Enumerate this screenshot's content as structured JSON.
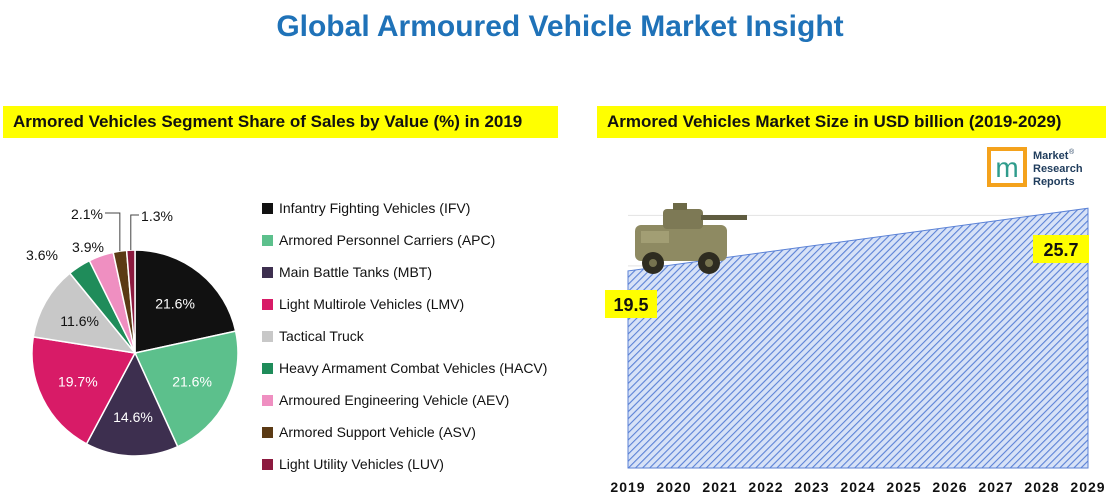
{
  "title": "Global Armoured Vehicle Market Insight",
  "pie_title": "Armored Vehicles Segment Share of Sales by Value (%) in 2019",
  "area_title": "Armored Vehicles Market Size in USD billion (2019-2029)",
  "logo": {
    "text": [
      "Market",
      "Research",
      "Reports"
    ],
    "mark": "m",
    "registered": "®"
  },
  "colors": {
    "title": "#1f72b8",
    "highlight": "#ffff00",
    "area": "#5b82d6"
  },
  "chart_data": [
    {
      "type": "pie",
      "title": "Armored Vehicles Segment Share of Sales by Value (%) in 2019",
      "legend_position": "right",
      "slices": [
        {
          "name": "Infantry Fighting Vehicles (IFV)",
          "value": 21.6,
          "label": "21.6%",
          "color": "#111111"
        },
        {
          "name": "Armored Personnel Carriers (APC)",
          "value": 21.6,
          "label": "21.6%",
          "color": "#5cc08c"
        },
        {
          "name": "Main Battle Tanks (MBT)",
          "value": 14.6,
          "label": "14.6%",
          "color": "#3d2f4f"
        },
        {
          "name": "Light Multirole Vehicles (LMV)",
          "value": 19.7,
          "label": "19.7%",
          "color": "#d81b67"
        },
        {
          "name": "Tactical Truck",
          "value": 11.6,
          "label": "11.6%",
          "color": "#c8c8c8"
        },
        {
          "name": "Heavy Armament Combat Vehicles (HACV)",
          "value": 3.6,
          "label": "3.6%",
          "color": "#1f8c5a"
        },
        {
          "name": "Armoured Engineering Vehicle (AEV)",
          "value": 3.9,
          "label": "3.9%",
          "color": "#ef8fc1"
        },
        {
          "name": "Armored Support Vehicle (ASV)",
          "value": 2.1,
          "label": "2.1%",
          "color": "#5b3a14"
        },
        {
          "name": "Light Utility Vehicles (LUV)",
          "value": 1.3,
          "label": "1.3%",
          "color": "#8c1a3f"
        }
      ]
    },
    {
      "type": "area",
      "title": "Armored Vehicles Market Size in USD billion (2019-2029)",
      "categories": [
        "2019",
        "2020",
        "2021",
        "2022",
        "2023",
        "2024",
        "2025",
        "2026",
        "2027",
        "2028",
        "2029"
      ],
      "start": {
        "x": "2019",
        "value": 19.5,
        "label": "19.5"
      },
      "end": {
        "x": "2029",
        "value": 25.7,
        "label": "25.7"
      },
      "ylim": [
        0,
        28
      ],
      "grid": true
    }
  ]
}
